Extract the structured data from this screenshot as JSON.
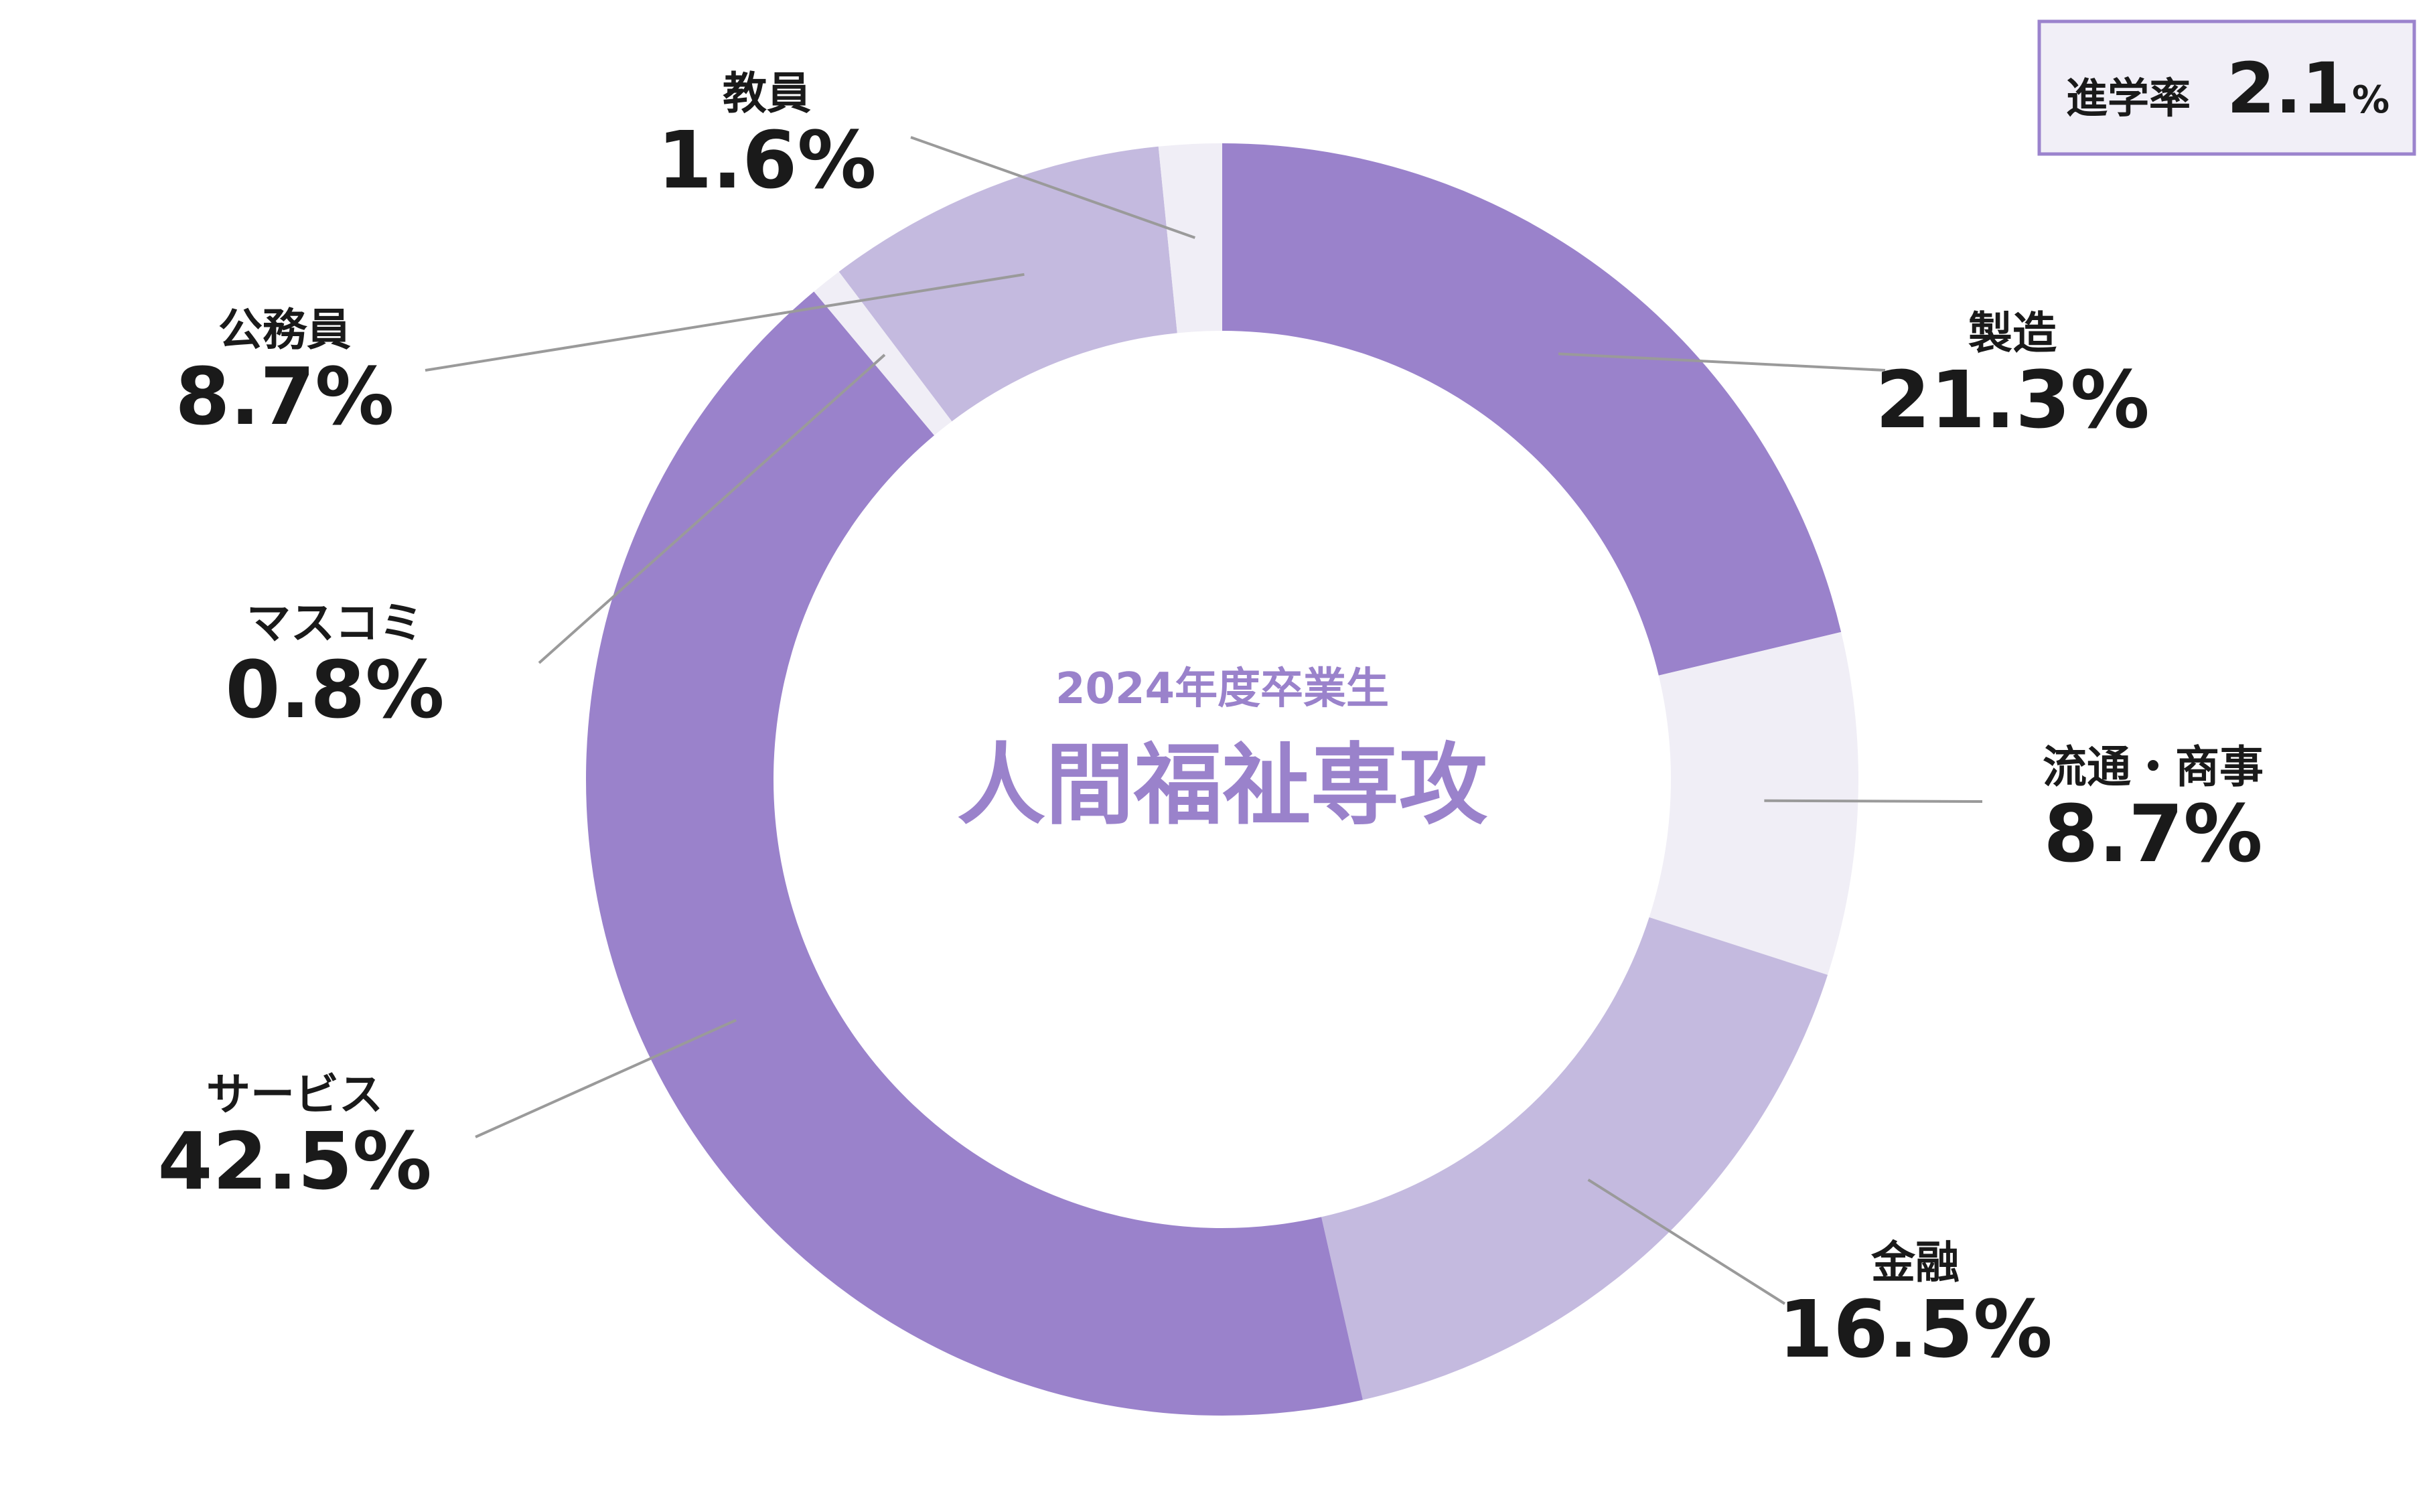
{
  "chart_data": {
    "type": "pie",
    "donut": true,
    "center_subtitle": "2024年度卒業生",
    "center_title": "人間福祉専攻",
    "unit": "%",
    "slices": [
      {
        "label": "製造",
        "value": 21.3,
        "value_label": "21.3%",
        "color": "#9a82cb"
      },
      {
        "label": "流通・商事",
        "value": 8.7,
        "value_label": "8.7%",
        "color": "#f0eef6"
      },
      {
        "label": "金融",
        "value": 16.5,
        "value_label": "16.5%",
        "color": "#c4badf"
      },
      {
        "label": "サービス",
        "value": 42.5,
        "value_label": "42.5%",
        "color": "#9a82cb"
      },
      {
        "label": "マスコミ",
        "value": 0.8,
        "value_label": "0.8%",
        "color": "#f0eef6"
      },
      {
        "label": "公務員",
        "value": 8.7,
        "value_label": "8.7%",
        "color": "#c4badf"
      },
      {
        "label": "教員",
        "value": 1.6,
        "value_label": "1.6%",
        "color": "#f0eef6"
      }
    ],
    "start": "top",
    "direction": "clockwise",
    "legend": "none",
    "badge": {
      "label": "進学率",
      "value": "2.1",
      "unit": "%"
    }
  },
  "colors": {
    "accent": "#9a82cb",
    "center_text": "#9a82cb",
    "badge_border": "#9b83cd",
    "badge_fill": "#f1eff7"
  }
}
